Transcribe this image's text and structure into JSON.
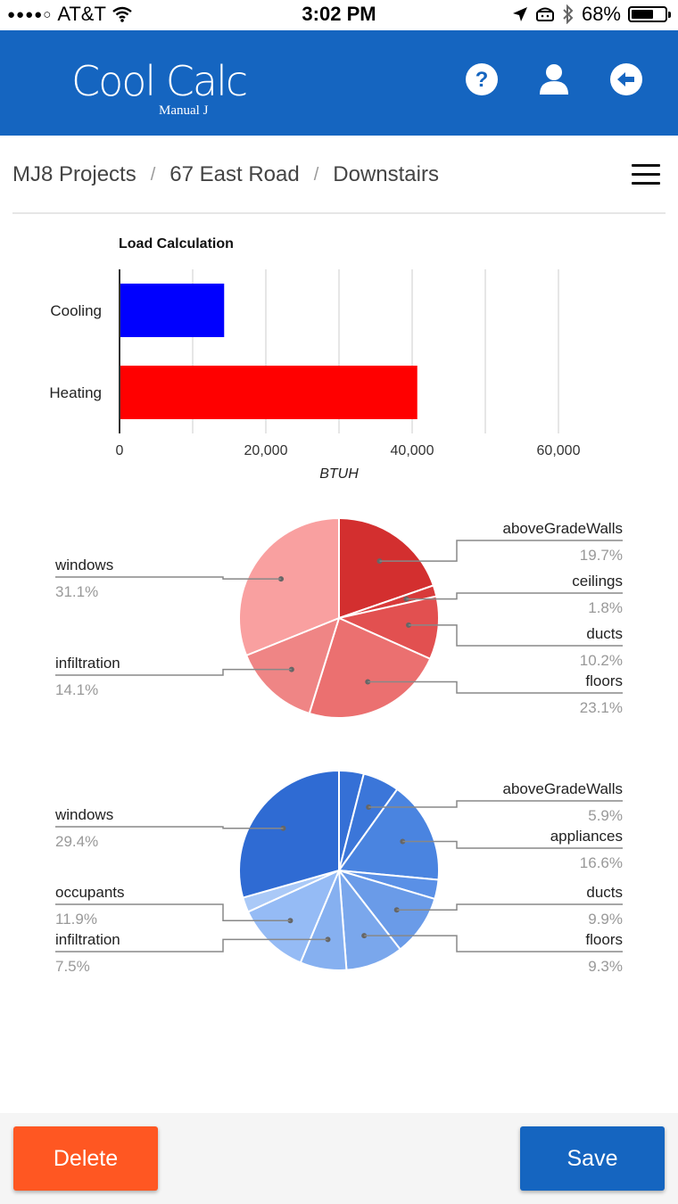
{
  "status_bar": {
    "carrier": "AT&T",
    "time": "3:02 PM",
    "battery": "68%",
    "battery_level": 0.68,
    "signal_bars": 4
  },
  "header": {
    "logo_main": "Cool Calc",
    "logo_sub": "Manual J",
    "icons": [
      "help-icon",
      "user-icon",
      "logout-icon"
    ],
    "color": "#1565c0"
  },
  "breadcrumb": {
    "items": [
      "MJ8 Projects",
      "67 East Road",
      "Downstairs"
    ],
    "separator": "/"
  },
  "chart_data": [
    {
      "type": "bar",
      "orientation": "horizontal",
      "title": "Load Calculation",
      "categories": [
        "Cooling",
        "Heating"
      ],
      "values": [
        14300,
        40700
      ],
      "colors": [
        "#0000ff",
        "#ff0000"
      ],
      "xlabel": "BTUH",
      "xlim": [
        0,
        70000
      ],
      "xticks": [
        0,
        20000,
        40000,
        60000
      ],
      "xtick_labels": [
        "0",
        "20,000",
        "40,000",
        "60,000"
      ],
      "grid": true
    },
    {
      "type": "pie",
      "slices": [
        {
          "label": "aboveGradeWalls",
          "value": 19.7,
          "text": "19.7%",
          "color": "#d32f2f",
          "side": "right"
        },
        {
          "label": "ceilings",
          "value": 1.8,
          "text": "1.8%",
          "color": "#d83a3a",
          "side": "right"
        },
        {
          "label": "ducts",
          "value": 10.2,
          "text": "10.2%",
          "color": "#e25050",
          "side": "right"
        },
        {
          "label": "floors",
          "value": 23.1,
          "text": "23.1%",
          "color": "#eb7070",
          "side": "right"
        },
        {
          "label": "infiltration",
          "value": 14.1,
          "text": "14.1%",
          "color": "#ef8585",
          "side": "left"
        },
        {
          "label": "windows",
          "value": 31.1,
          "text": "31.1%",
          "color": "#f9a0a0",
          "side": "left"
        }
      ]
    },
    {
      "type": "pie",
      "slices": [
        {
          "label": "",
          "value": 4.0,
          "text": "",
          "color": "#3570d6",
          "side": "none"
        },
        {
          "label": "aboveGradeWalls",
          "value": 5.9,
          "text": "5.9%",
          "color": "#3b76d9",
          "side": "right"
        },
        {
          "label": "appliances",
          "value": 16.6,
          "text": "16.6%",
          "color": "#4a84e0",
          "side": "right"
        },
        {
          "label": "",
          "value": 3.1,
          "text": "",
          "color": "#5a90e6",
          "side": "none"
        },
        {
          "label": "ducts",
          "value": 9.9,
          "text": "9.9%",
          "color": "#6a9be8",
          "side": "right"
        },
        {
          "label": "floors",
          "value": 9.3,
          "text": "9.3%",
          "color": "#7aa7ec",
          "side": "right"
        },
        {
          "label": "infiltration",
          "value": 7.5,
          "text": "7.5%",
          "color": "#86b0f0",
          "side": "left"
        },
        {
          "label": "occupants",
          "value": 11.9,
          "text": "11.9%",
          "color": "#95bbf5",
          "side": "left"
        },
        {
          "label": "",
          "value": 2.4,
          "text": "",
          "color": "#aac9f7",
          "side": "none"
        },
        {
          "label": "windows",
          "value": 29.4,
          "text": "29.4%",
          "color": "#2f6bd3",
          "side": "left"
        }
      ]
    }
  ],
  "footer": {
    "delete_label": "Delete",
    "save_label": "Save",
    "delete_color": "#ff5722",
    "save_color": "#1565c0"
  }
}
